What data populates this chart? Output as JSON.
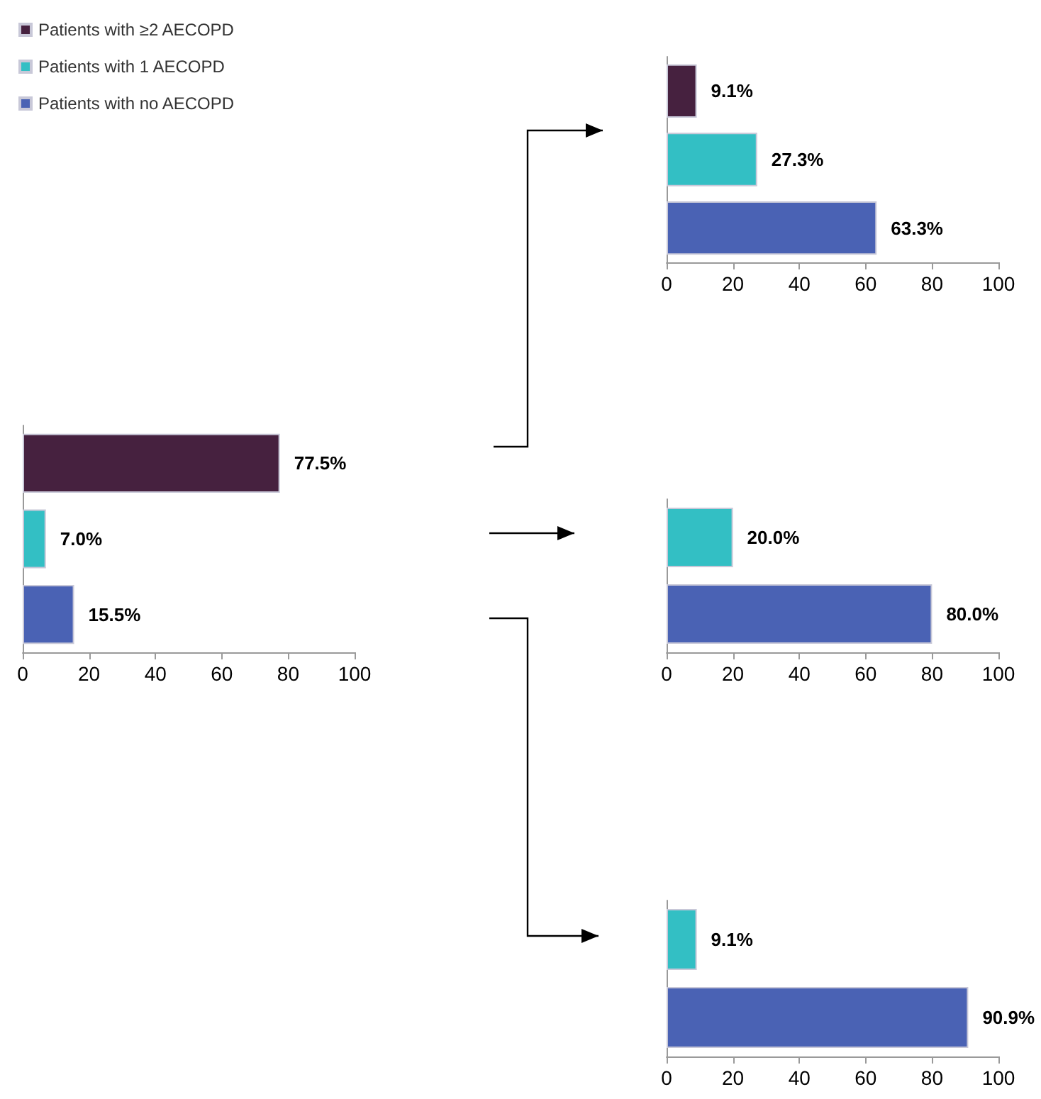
{
  "chart_data": [
    {
      "type": "bar",
      "orientation": "horizontal",
      "categories": [
        null,
        null,
        null
      ],
      "series": [
        {
          "name": "Patients with ≥2 AECOPD",
          "color": "#46213f",
          "values": [
            77.5,
            null,
            null
          ],
          "value_labels": [
            "77.5%",
            null,
            null
          ]
        },
        {
          "name": "Patients with 1 AECOPD",
          "color": "#33bfc4",
          "values": [
            null,
            7.0,
            null
          ],
          "value_labels": [
            null,
            "7.0%",
            null
          ]
        },
        {
          "name": "Patients with no AECOPD",
          "color": "#4a62b4",
          "values": [
            null,
            null,
            15.5
          ],
          "value_labels": [
            null,
            null,
            "15.5%"
          ]
        }
      ],
      "xlim": [
        0,
        100
      ],
      "xticks": [
        0,
        20,
        40,
        60,
        80,
        100
      ],
      "grid": false,
      "legend": "top left"
    },
    {
      "type": "bar",
      "orientation": "horizontal",
      "categories": [
        null,
        null,
        null
      ],
      "values": [
        9.1,
        27.3,
        63.3
      ],
      "colors": [
        "#46213f",
        "#33bfc4",
        "#4a62b4"
      ],
      "value_labels": [
        "9.1%",
        "27.3%",
        "63.3%"
      ],
      "xlim": [
        0,
        100
      ],
      "xticks": [
        0,
        20,
        40,
        60,
        80,
        100
      ],
      "grid": false
    },
    {
      "type": "bar",
      "orientation": "horizontal",
      "categories": [
        null,
        null
      ],
      "values": [
        20.0,
        80.0
      ],
      "colors": [
        "#33bfc4",
        "#4a62b4"
      ],
      "value_labels": [
        "20.0%",
        "80.0%"
      ],
      "xlim": [
        0,
        100
      ],
      "xticks": [
        0,
        20,
        40,
        60,
        80,
        100
      ],
      "grid": false
    },
    {
      "type": "bar",
      "orientation": "horizontal",
      "categories": [
        null,
        null
      ],
      "values": [
        9.1,
        90.9
      ],
      "colors": [
        "#33bfc4",
        "#4a62b4"
      ],
      "value_labels": [
        "9.1%",
        "90.9%"
      ],
      "xlim": [
        0,
        100
      ],
      "xticks": [
        0,
        20,
        40,
        60,
        80,
        100
      ],
      "grid": false
    }
  ]
}
